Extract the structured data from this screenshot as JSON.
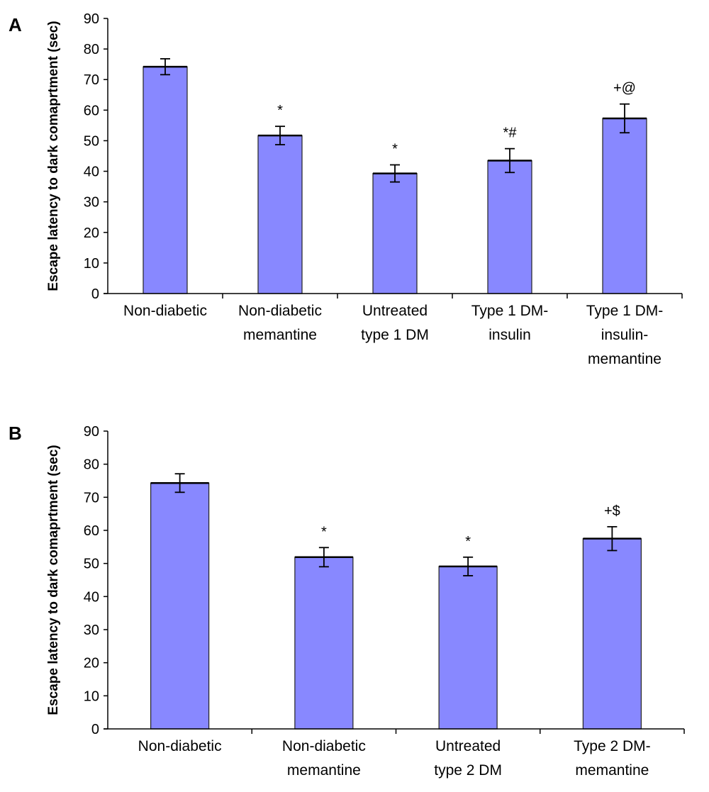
{
  "chart_data": [
    {
      "type": "bar",
      "panel_label": "A",
      "title": "",
      "xlabel": "",
      "ylabel": "Escape latency to dark comaprtment (sec)",
      "ylim": [
        0,
        90
      ],
      "yticks": [
        "0",
        "10",
        "20",
        "30",
        "40",
        "50",
        "60",
        "70",
        "80",
        "90"
      ],
      "categories": [
        [
          "Non-diabetic"
        ],
        [
          "Non-diabetic",
          "memantine"
        ],
        [
          "Untreated",
          "type 1 DM"
        ],
        [
          "Type 1 DM-",
          "insulin"
        ],
        [
          "Type 1 DM-",
          "insulin-",
          "memantine"
        ]
      ],
      "values": [
        74.2,
        51.7,
        39.3,
        43.5,
        57.3
      ],
      "errors": [
        2.6,
        3.0,
        2.8,
        3.9,
        4.7
      ],
      "annotations": [
        "",
        "*",
        "*",
        "*#",
        "+@"
      ],
      "bar_color": "#8888ff"
    },
    {
      "type": "bar",
      "panel_label": "B",
      "title": "",
      "xlabel": "",
      "ylabel": "Escape latency to dark comaprtment (sec)",
      "ylim": [
        0,
        90
      ],
      "yticks": [
        "0",
        "10",
        "20",
        "30",
        "40",
        "50",
        "60",
        "70",
        "80",
        "90"
      ],
      "categories": [
        [
          "Non-diabetic"
        ],
        [
          "Non-diabetic",
          "memantine"
        ],
        [
          "Untreated",
          "type 2 DM"
        ],
        [
          "Type 2 DM-",
          "memantine"
        ]
      ],
      "values": [
        74.3,
        51.9,
        49.1,
        57.5
      ],
      "errors": [
        2.8,
        2.9,
        2.8,
        3.6
      ],
      "annotations": [
        "",
        "*",
        "*",
        "+$"
      ],
      "bar_color": "#8888ff"
    }
  ]
}
